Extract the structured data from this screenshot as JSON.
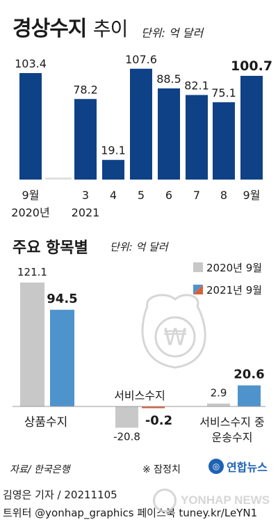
{
  "header": {
    "title_bold": "경상수지",
    "title_light": "추이",
    "unit": "단위: 억 달러"
  },
  "section2": {
    "title": "주요 항목별",
    "unit": "단위: 억 달러"
  },
  "footer": {
    "source": "자료/ 한국은행",
    "note": "※ 잠정치",
    "logo": "연합뉴스",
    "credit_line1": "김영은 기자 / 20211105",
    "credit_line2": "트위터 @yonhap_graphics  페이스북 tuney.kr/LeYN1",
    "watermark": "YONHAP NEWS"
  },
  "colors": {
    "bar_main": "#0f4187",
    "bar_2020": "#c8c8c8",
    "bar_2021": "#4e93cc",
    "neg_2021": "#d95f3a"
  },
  "chart_data": [
    {
      "type": "bar",
      "title": "경상수지 추이",
      "unit": "단위: 억 달러",
      "categories": [
        "9월",
        "3",
        "4",
        "5",
        "6",
        "7",
        "8",
        "9월"
      ],
      "category_sublabels": [
        "2020년",
        "2021",
        "",
        "",
        "",
        "",
        "",
        ""
      ],
      "values": [
        103.4,
        78.2,
        19.1,
        107.6,
        88.5,
        82.1,
        75.1,
        100.7
      ],
      "ylim": [
        0,
        110
      ],
      "grid": false
    },
    {
      "type": "bar",
      "title": "주요 항목별",
      "unit": "단위: 억 달러",
      "categories": [
        "상품수지",
        "서비스수지",
        "서비스수지 중 운송수지"
      ],
      "series": [
        {
          "name": "2020년 9월",
          "values": [
            121.1,
            -20.8,
            2.9
          ]
        },
        {
          "name": "2021년 9월",
          "values": [
            94.5,
            -0.2,
            20.6
          ]
        }
      ],
      "legend_position": "top-right",
      "grid": false
    }
  ]
}
